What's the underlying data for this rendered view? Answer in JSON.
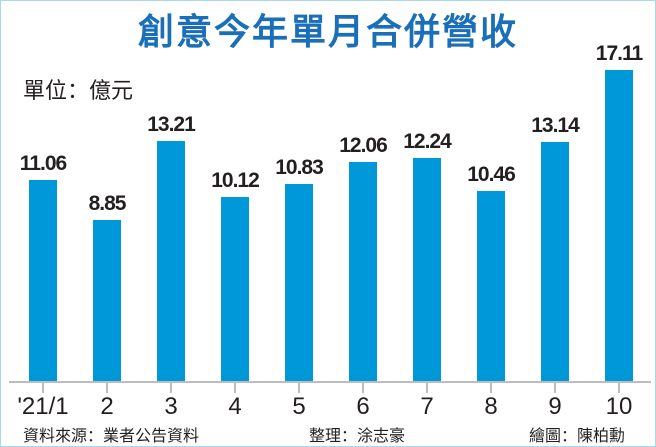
{
  "chart_data": {
    "type": "bar",
    "title": "創意今年單月合併營收",
    "unit_label": "單位：億元",
    "xlabel": "",
    "ylabel": "億元",
    "categories": [
      "'21/1",
      "2",
      "3",
      "4",
      "5",
      "6",
      "7",
      "8",
      "9",
      "10"
    ],
    "values": [
      11.06,
      8.85,
      13.21,
      10.12,
      10.83,
      12.06,
      12.24,
      10.46,
      13.14,
      17.11
    ],
    "value_labels": [
      "11.06",
      "8.85",
      "13.21",
      "10.12",
      "10.83",
      "12.06",
      "12.24",
      "10.46",
      "13.14",
      "17.11"
    ],
    "ylim": [
      0,
      17.11
    ],
    "grid": false,
    "legend": null,
    "bar_color": "#0098d8",
    "title_color": "#1a6fb8"
  },
  "footer": {
    "source": "資料來源：業者公告資料",
    "compiled_by": "整理：涂志豪",
    "graphic_by": "繪圖：陳柏勳"
  }
}
